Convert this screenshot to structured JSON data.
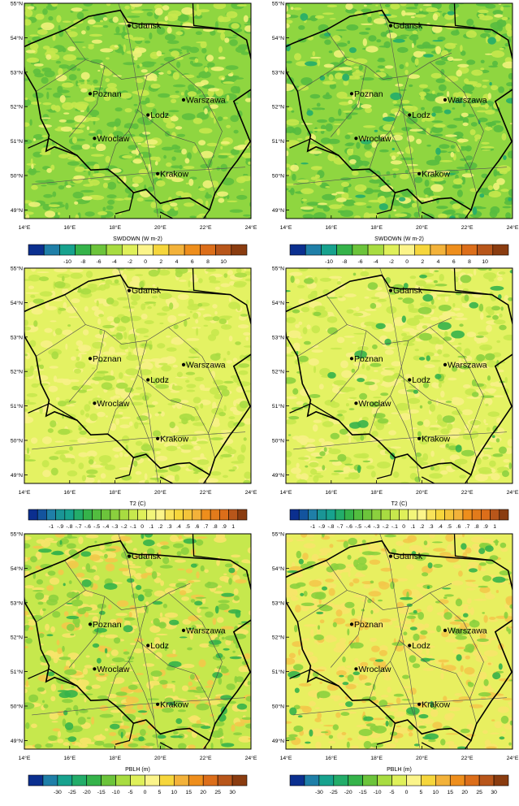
{
  "rows": [
    {
      "field": "SWDOWN",
      "unit_label": "SWDOWN  (W m-2)",
      "colorbar_labels": [
        "-10",
        "-8",
        "-6",
        "-4",
        "-2",
        "0",
        "2",
        "4",
        "6",
        "8",
        "10"
      ],
      "colorbar_colors": [
        "#0b2f8f",
        "#1f7fa8",
        "#17a28e",
        "#35b34a",
        "#6cc43b",
        "#a8dc41",
        "#dff05a",
        "#fbf48a",
        "#f6d63c",
        "#f3b23a",
        "#ee8e1c",
        "#dc6e1a",
        "#b8561a",
        "#8a3c10"
      ]
    },
    {
      "field": "T2",
      "unit_label": "T2  (C)",
      "colorbar_labels": [
        "-1",
        "-.9",
        "-.8",
        "-.7",
        "-.6",
        "-.5",
        "-.4",
        "-.3",
        "-.2",
        "-.1",
        "0",
        ".1",
        ".2",
        ".3",
        ".4",
        ".5",
        ".6",
        ".7",
        ".8",
        ".9",
        "1"
      ],
      "colorbar_colors": [
        "#0b2f8f",
        "#13549e",
        "#1f7fa8",
        "#1a9596",
        "#17a28e",
        "#23ad6a",
        "#35b34a",
        "#52bd3f",
        "#6cc43b",
        "#8bd03e",
        "#a8dc41",
        "#c7e84d",
        "#dff05a",
        "#f2f57a",
        "#fbf48a",
        "#f8e35a",
        "#f6d63c",
        "#f4c43a",
        "#f3b23a",
        "#ee8e1c",
        "#e27b1b",
        "#dc6e1a",
        "#b8561a",
        "#8a3c10"
      ]
    },
    {
      "field": "PBLH",
      "unit_label": "PBLH  (m)",
      "colorbar_labels": [
        "-30",
        "-25",
        "-20",
        "-15",
        "-10",
        "-5",
        "0",
        "5",
        "10",
        "15",
        "20",
        "25",
        "30"
      ],
      "colorbar_colors": [
        "#0b2f8f",
        "#1f7fa8",
        "#17a28e",
        "#23ad6a",
        "#35b34a",
        "#6cc43b",
        "#a8dc41",
        "#dff05a",
        "#fbf48a",
        "#f6d63c",
        "#f3b23a",
        "#ee8e1c",
        "#dc6e1a",
        "#b8561a",
        "#8a3c10"
      ]
    }
  ],
  "lat_labels": [
    "55°N",
    "54°N",
    "53°N",
    "52°N",
    "51°N",
    "50°N",
    "49°N"
  ],
  "lon_labels": [
    "14°E",
    "16°E",
    "18°E",
    "20°E",
    "22°E",
    "24°E"
  ],
  "cities": [
    {
      "name": "Gdansk"
    },
    {
      "name": "Poznan"
    },
    {
      "name": "Warszawa"
    },
    {
      "name": "Lodz"
    },
    {
      "name": "Wroclaw"
    },
    {
      "name": "Krakow"
    }
  ],
  "panels": [
    {
      "row": 0,
      "col": 0,
      "base": "#8fd640",
      "blobs": [
        [
          "#5ebf3d",
          0.35
        ],
        [
          "#c6e84d",
          0.25
        ],
        [
          "#f0f27a",
          0.12
        ]
      ]
    },
    {
      "row": 0,
      "col": 1,
      "base": "#8fd640",
      "blobs": [
        [
          "#56bb3f",
          0.38
        ],
        [
          "#c6e84d",
          0.22
        ],
        [
          "#f0f27a",
          0.1
        ],
        [
          "#23ad6a",
          0.04
        ]
      ]
    },
    {
      "row": 1,
      "col": 0,
      "base": "#e4f263",
      "blobs": [
        [
          "#f7f186",
          0.3
        ],
        [
          "#c6e84d",
          0.25
        ],
        [
          "#a8dc41",
          0.12
        ]
      ]
    },
    {
      "row": 1,
      "col": 1,
      "base": "#e4f263",
      "blobs": [
        [
          "#f7f186",
          0.3
        ],
        [
          "#c6e84d",
          0.25
        ],
        [
          "#8bd03e",
          0.12
        ],
        [
          "#35b34a",
          0.03
        ]
      ]
    },
    {
      "row": 2,
      "col": 0,
      "base": "#c6e84d",
      "blobs": [
        [
          "#f7e46a",
          0.3
        ],
        [
          "#f3c84a",
          0.14
        ],
        [
          "#8bd03e",
          0.22
        ],
        [
          "#35b34a",
          0.07
        ]
      ]
    },
    {
      "row": 2,
      "col": 1,
      "base": "#e8ef60",
      "blobs": [
        [
          "#f7e46a",
          0.35
        ],
        [
          "#f3c84a",
          0.18
        ],
        [
          "#8bd03e",
          0.16
        ],
        [
          "#35b34a",
          0.05
        ]
      ]
    }
  ]
}
